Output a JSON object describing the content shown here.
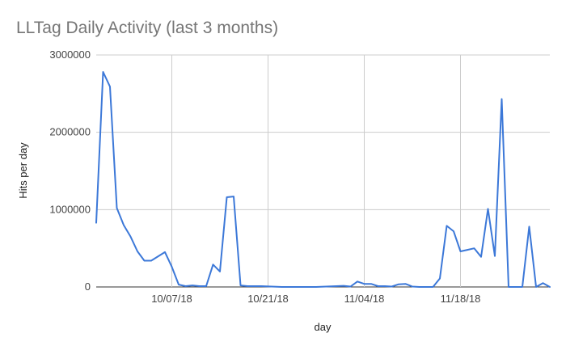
{
  "chart_data": {
    "type": "line",
    "title": "LLTag Daily Activity (last 3 months)",
    "xlabel": "day",
    "ylabel": "Hits per day",
    "ylim": [
      0,
      3000000
    ],
    "yticks": [
      0,
      1000000,
      2000000,
      3000000
    ],
    "ytick_labels": [
      "0",
      "1000000",
      "2000000",
      "3000000"
    ],
    "xlim": [
      "2018-09-26",
      "2018-12-01"
    ],
    "xticks": [
      "2018-10-07",
      "2018-10-21",
      "2018-11-04",
      "2018-11-18"
    ],
    "xtick_labels": [
      "10/07/18",
      "10/21/18",
      "11/04/18",
      "11/18/18"
    ],
    "grid": true,
    "color": "#3c78d8",
    "series": [
      {
        "x": [
          "2018-09-26",
          "2018-09-27",
          "2018-09-28",
          "2018-09-29",
          "2018-09-30",
          "2018-10-01",
          "2018-10-02",
          "2018-10-03",
          "2018-10-04",
          "2018-10-06",
          "2018-10-07",
          "2018-10-08",
          "2018-10-09",
          "2018-10-10",
          "2018-10-11",
          "2018-10-12",
          "2018-10-13",
          "2018-10-14",
          "2018-10-15",
          "2018-10-16",
          "2018-10-17",
          "2018-10-18",
          "2018-10-19",
          "2018-10-20",
          "2018-10-23",
          "2018-10-28",
          "2018-11-01",
          "2018-11-02",
          "2018-11-03",
          "2018-11-04",
          "2018-11-05",
          "2018-11-06",
          "2018-11-07",
          "2018-11-08",
          "2018-11-09",
          "2018-11-10",
          "2018-11-11",
          "2018-11-12",
          "2018-11-13",
          "2018-11-14",
          "2018-11-15",
          "2018-11-16",
          "2018-11-17",
          "2018-11-18",
          "2018-11-19",
          "2018-11-20",
          "2018-11-21",
          "2018-11-22",
          "2018-11-23",
          "2018-11-24",
          "2018-11-25",
          "2018-11-26",
          "2018-11-27",
          "2018-11-28",
          "2018-11-29",
          "2018-11-30",
          "2018-12-01"
        ],
        "values": [
          830000,
          2780000,
          2590000,
          1020000,
          800000,
          650000,
          460000,
          340000,
          340000,
          450000,
          260000,
          30000,
          10000,
          20000,
          10000,
          10000,
          290000,
          200000,
          1160000,
          1170000,
          20000,
          10000,
          10000,
          10000,
          0,
          0,
          15000,
          5000,
          70000,
          40000,
          40000,
          10000,
          10000,
          5000,
          35000,
          40000,
          5000,
          0,
          0,
          0,
          110000,
          790000,
          720000,
          460000,
          480000,
          500000,
          390000,
          1010000,
          400000,
          2430000,
          0,
          0,
          0,
          780000,
          0,
          50000,
          0
        ]
      }
    ]
  }
}
